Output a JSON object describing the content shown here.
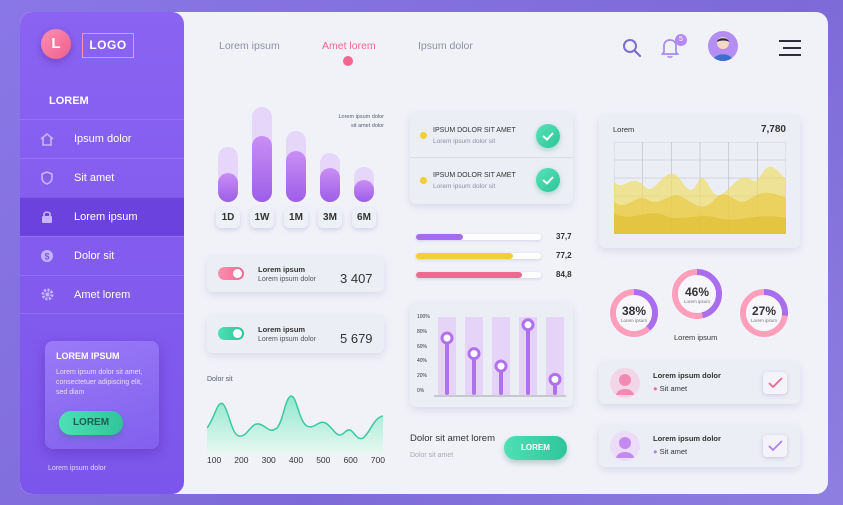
{
  "logo": {
    "initial": "L",
    "text": "LOGO"
  },
  "sidebar": {
    "title": "LOREM",
    "items": [
      {
        "label": "Ipsum dolor",
        "icon": "home-icon"
      },
      {
        "label": "Sit amet",
        "icon": "shield-icon"
      },
      {
        "label": "Lorem ipsum",
        "icon": "lock-icon",
        "active": true
      },
      {
        "label": "Dolor sit",
        "icon": "dollar-icon"
      },
      {
        "label": "Amet lorem",
        "icon": "gear-icon"
      }
    ],
    "card": {
      "title": "LOREM IPSUM",
      "text": "Lorem ipsum dolor sit amet, consectetuer adipiscing elit, sed diam",
      "button": "LOREM"
    },
    "footer": "Lorem ipsum dolor"
  },
  "topnav": {
    "items": [
      "Lorem ipsum",
      "Amet lorem",
      "Ipsum dolor"
    ],
    "active_index": 1,
    "notification_count": "5"
  },
  "bar_chart": {
    "legend_line1": "Lorem ipsum dolor",
    "legend_line2": "sit amet dolor",
    "periods": [
      "1D",
      "1W",
      "1M",
      "3M",
      "6M"
    ]
  },
  "toggles": [
    {
      "title": "Lorem ipsum",
      "subtitle": "Lorem ipsum dolor",
      "value": "3 407",
      "color": "#f0688f"
    },
    {
      "title": "Lorem ipsum",
      "subtitle": "Lorem ipsum dolor",
      "value": "5 679",
      "color": "#2cc597"
    }
  ],
  "wave_chart": {
    "title": "Dolor sit",
    "x_ticks": [
      "100",
      "200",
      "300",
      "400",
      "500",
      "600",
      "700"
    ]
  },
  "list_items": [
    {
      "title": "IPSUM DOLOR  SIT AMET",
      "subtitle": "Lorem ipsum dolor sit"
    },
    {
      "title": "IPSUM DOLOR  SIT AMET",
      "subtitle": "Lorem ipsum dolor sit"
    }
  ],
  "progress_bars": [
    {
      "value": "37,7",
      "fraction": 0.377,
      "color": "#a66cf0"
    },
    {
      "value": "77,2",
      "fraction": 0.772,
      "color": "#f2cf34"
    },
    {
      "value": "84,8",
      "fraction": 0.848,
      "color": "#f06a90"
    }
  ],
  "slider_chart": {
    "y_ticks": [
      "100%",
      "80%",
      "60%",
      "40%",
      "20%",
      "0%"
    ],
    "levels": [
      0.73,
      0.53,
      0.37,
      0.9,
      0.2
    ]
  },
  "action": {
    "title": "Dolor sit amet lorem",
    "subtitle": "Dolor sit amet",
    "button": "LOREM"
  },
  "area_chart": {
    "title": "Lorem",
    "value": "7,780"
  },
  "rings": [
    {
      "pct": "38%",
      "sub": "Lorem ipsum",
      "value": 0.38
    },
    {
      "pct": "46%",
      "sub": "Lorem ipsum",
      "value": 0.46
    },
    {
      "pct": "27%",
      "sub": "Lorem ipsum",
      "value": 0.27
    }
  ],
  "rings_label": "Lorem ipsum",
  "people": [
    {
      "name": "Lorem ipsum dolor",
      "place": "Sit amet"
    },
    {
      "name": "Lorem ipsum dolor",
      "place": "Sit amet"
    }
  ],
  "colors": {
    "accent_purple": "#8a63f2",
    "accent_pink": "#f0688f",
    "accent_green": "#2cc597",
    "accent_yellow": "#f2cf34"
  }
}
